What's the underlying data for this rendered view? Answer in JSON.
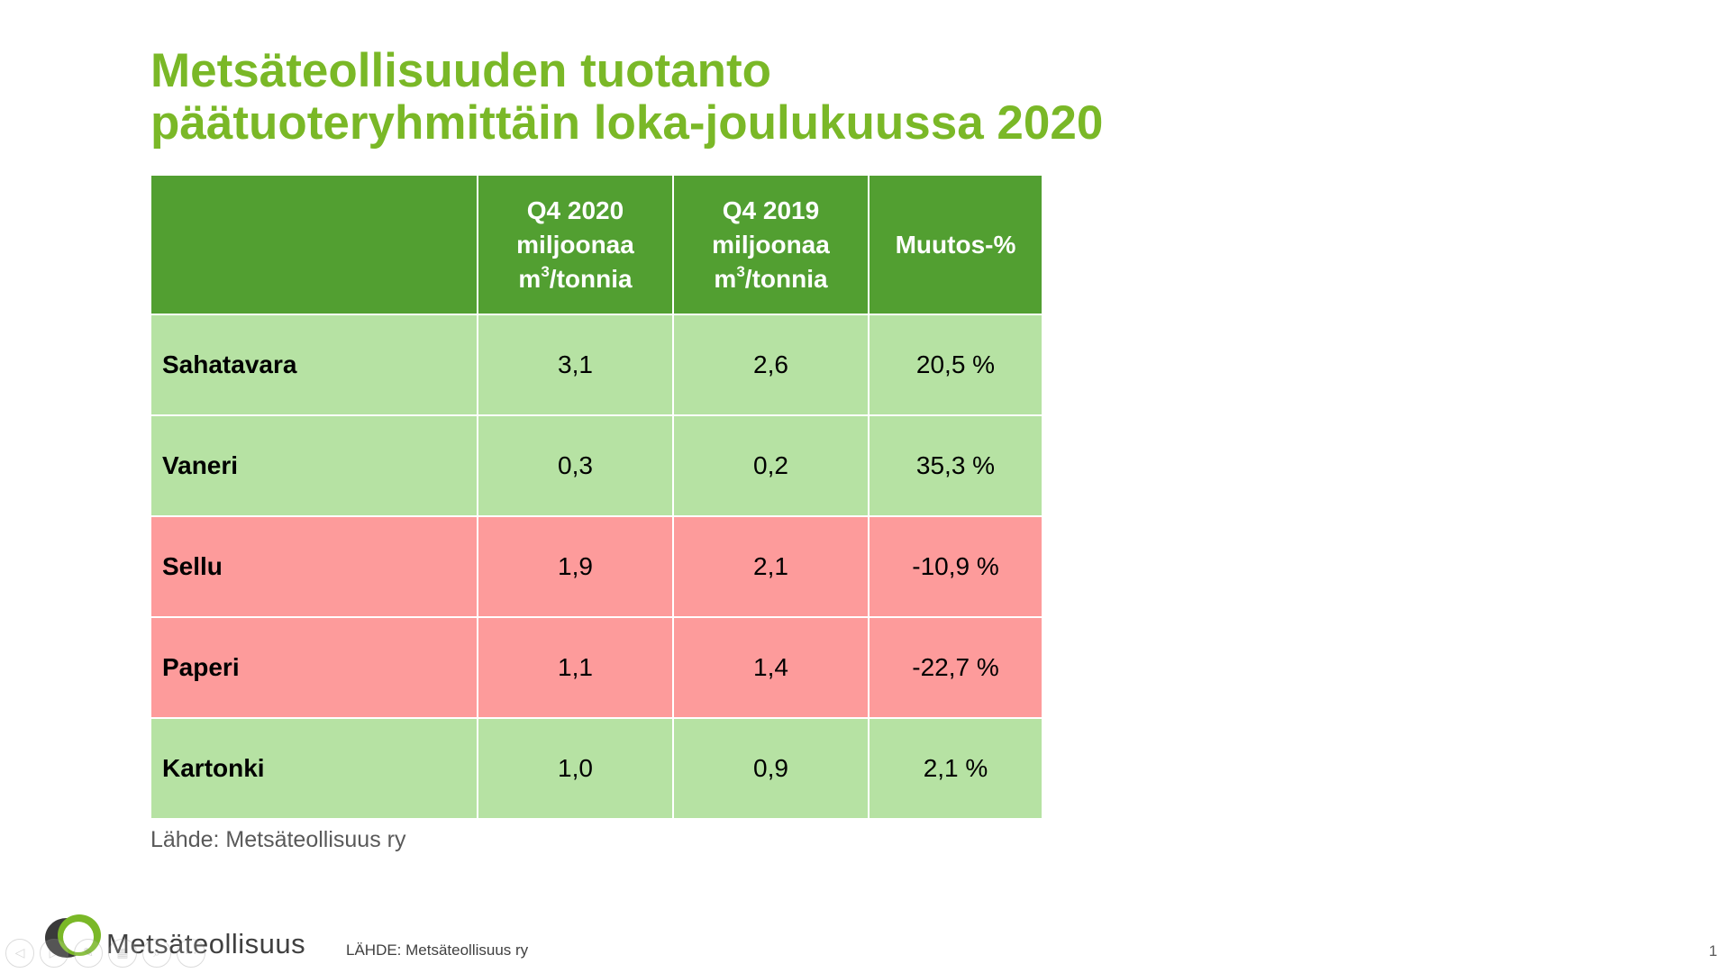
{
  "slide": {
    "title_line1": "Metsäteollisuuden tuotanto",
    "title_line2": "päätuoteryhmittäin loka-joulukuussa 2020",
    "source_note": "Lähde: Metsäteollisuus ry",
    "page_number": "1"
  },
  "table": {
    "headers": [
      {
        "lines": [
          "",
          "",
          ""
        ]
      },
      {
        "line1": "Q4 2020",
        "line2": "miljoonaa",
        "line3_pre": "m",
        "line3_sup": "3",
        "line3_post": "/tonnia"
      },
      {
        "line1": "Q4 2019",
        "line2": "miljoonaa",
        "line3_pre": "m",
        "line3_sup": "3",
        "line3_post": "/tonnia"
      },
      {
        "line1": "Muutos-%"
      }
    ],
    "rows": [
      {
        "label": "Sahatavara",
        "q4_2020": "3,1",
        "q4_2019": "2,6",
        "change": "20,5 %",
        "trend": "up"
      },
      {
        "label": "Vaneri",
        "q4_2020": "0,3",
        "q4_2019": "0,2",
        "change": "35,3 %",
        "trend": "up"
      },
      {
        "label": "Sellu",
        "q4_2020": "1,9",
        "q4_2019": "2,1",
        "change": "-10,9 %",
        "trend": "down"
      },
      {
        "label": "Paperi",
        "q4_2020": "1,1",
        "q4_2019": "1,4",
        "change": "-22,7 %",
        "trend": "down"
      },
      {
        "label": "Kartonki",
        "q4_2020": "1,0",
        "q4_2019": "0,9",
        "change": "2,1 %",
        "trend": "up"
      }
    ]
  },
  "footer": {
    "logo_text": "Metsäteollisuus",
    "source": "LÄHDE: Metsäteollisuus ry"
  },
  "colors": {
    "title_green": "#7ab827",
    "header_green": "#529f31",
    "row_up": "#b6e2a3",
    "row_down": "#fd9b9b"
  },
  "nav": {
    "icons": [
      "previous-slide-icon",
      "next-slide-icon",
      "pen-icon",
      "slides-icon",
      "zoom-icon",
      "more-options-icon"
    ]
  }
}
